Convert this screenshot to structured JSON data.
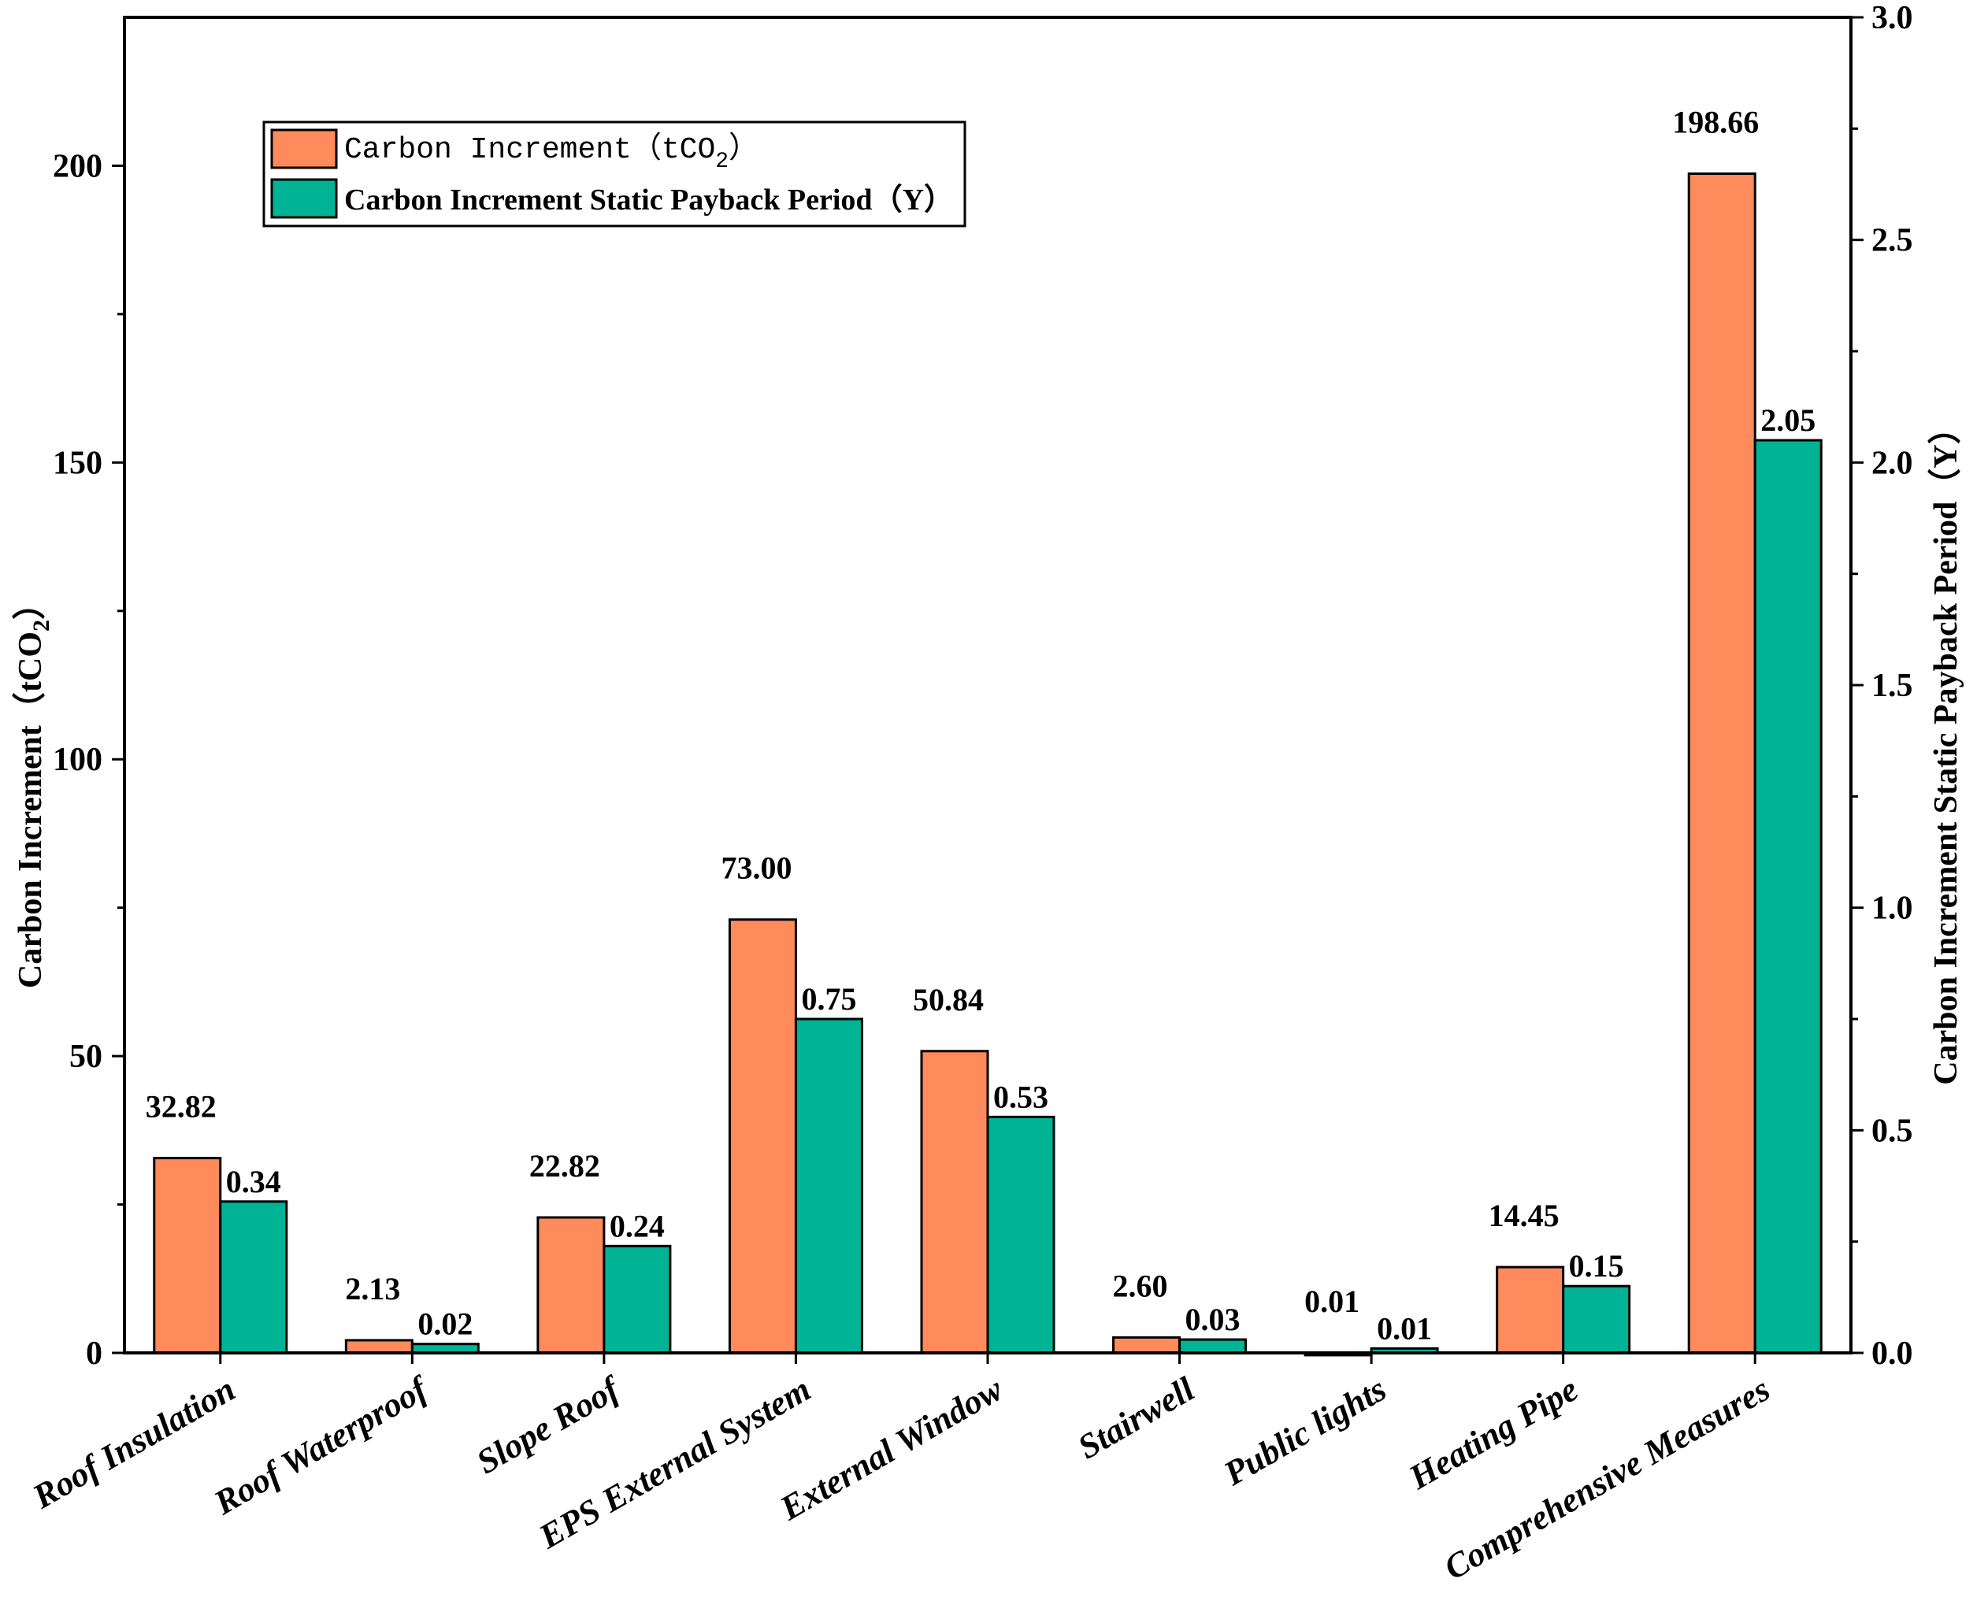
{
  "chart_data": {
    "type": "bar",
    "categories": [
      "Roof Insulation",
      "Roof Waterproof",
      "Slope Roof",
      "EPS External System",
      "External Window",
      "Stairwell",
      "Public lights",
      "Heating Pipe",
      "Comprehensive Measures"
    ],
    "series": [
      {
        "name": "Carbon Increment（tCO",
        "name_sub": "2",
        "name_tail": "）",
        "axis": "left",
        "color": "#ff8a5c",
        "values": [
          32.82,
          2.13,
          22.82,
          73.0,
          50.84,
          2.6,
          0.01,
          14.45,
          198.66
        ],
        "labels": [
          "32.82",
          "2.13",
          "22.82",
          "73.00",
          "50.84",
          "2.60",
          "0.01",
          "14.45",
          "198.66"
        ]
      },
      {
        "name": "Carbon Increment Static Payback Period（Y）",
        "axis": "right",
        "color": "#00b394",
        "values": [
          0.34,
          0.02,
          0.24,
          0.75,
          0.53,
          0.03,
          0.01,
          0.15,
          2.05
        ],
        "labels": [
          "0.34",
          "0.02",
          "0.24",
          "0.75",
          "0.53",
          "0.03",
          "0.01",
          "0.15",
          "2.05"
        ]
      }
    ],
    "ylabel_left": "Carbon Increment（tCO",
    "ylabel_left_sub": "2",
    "ylabel_left_tail": "）",
    "ylabel_right": "Carbon Increment Static Payback Period（Y）",
    "ylim_left": [
      0,
      225
    ],
    "ylim_right": [
      0,
      3.0
    ],
    "yticks_left": [
      "0",
      "50",
      "100",
      "150",
      "200"
    ],
    "yticks_left_values": [
      0,
      50,
      100,
      150,
      200
    ],
    "yticks_right": [
      "0.0",
      "0.5",
      "1.0",
      "1.5",
      "2.0",
      "2.5",
      "3.0"
    ],
    "yticks_right_values": [
      0,
      0.5,
      1.0,
      1.5,
      2.0,
      2.5,
      3.0
    ],
    "legend_position": "top-left",
    "grid": false
  }
}
